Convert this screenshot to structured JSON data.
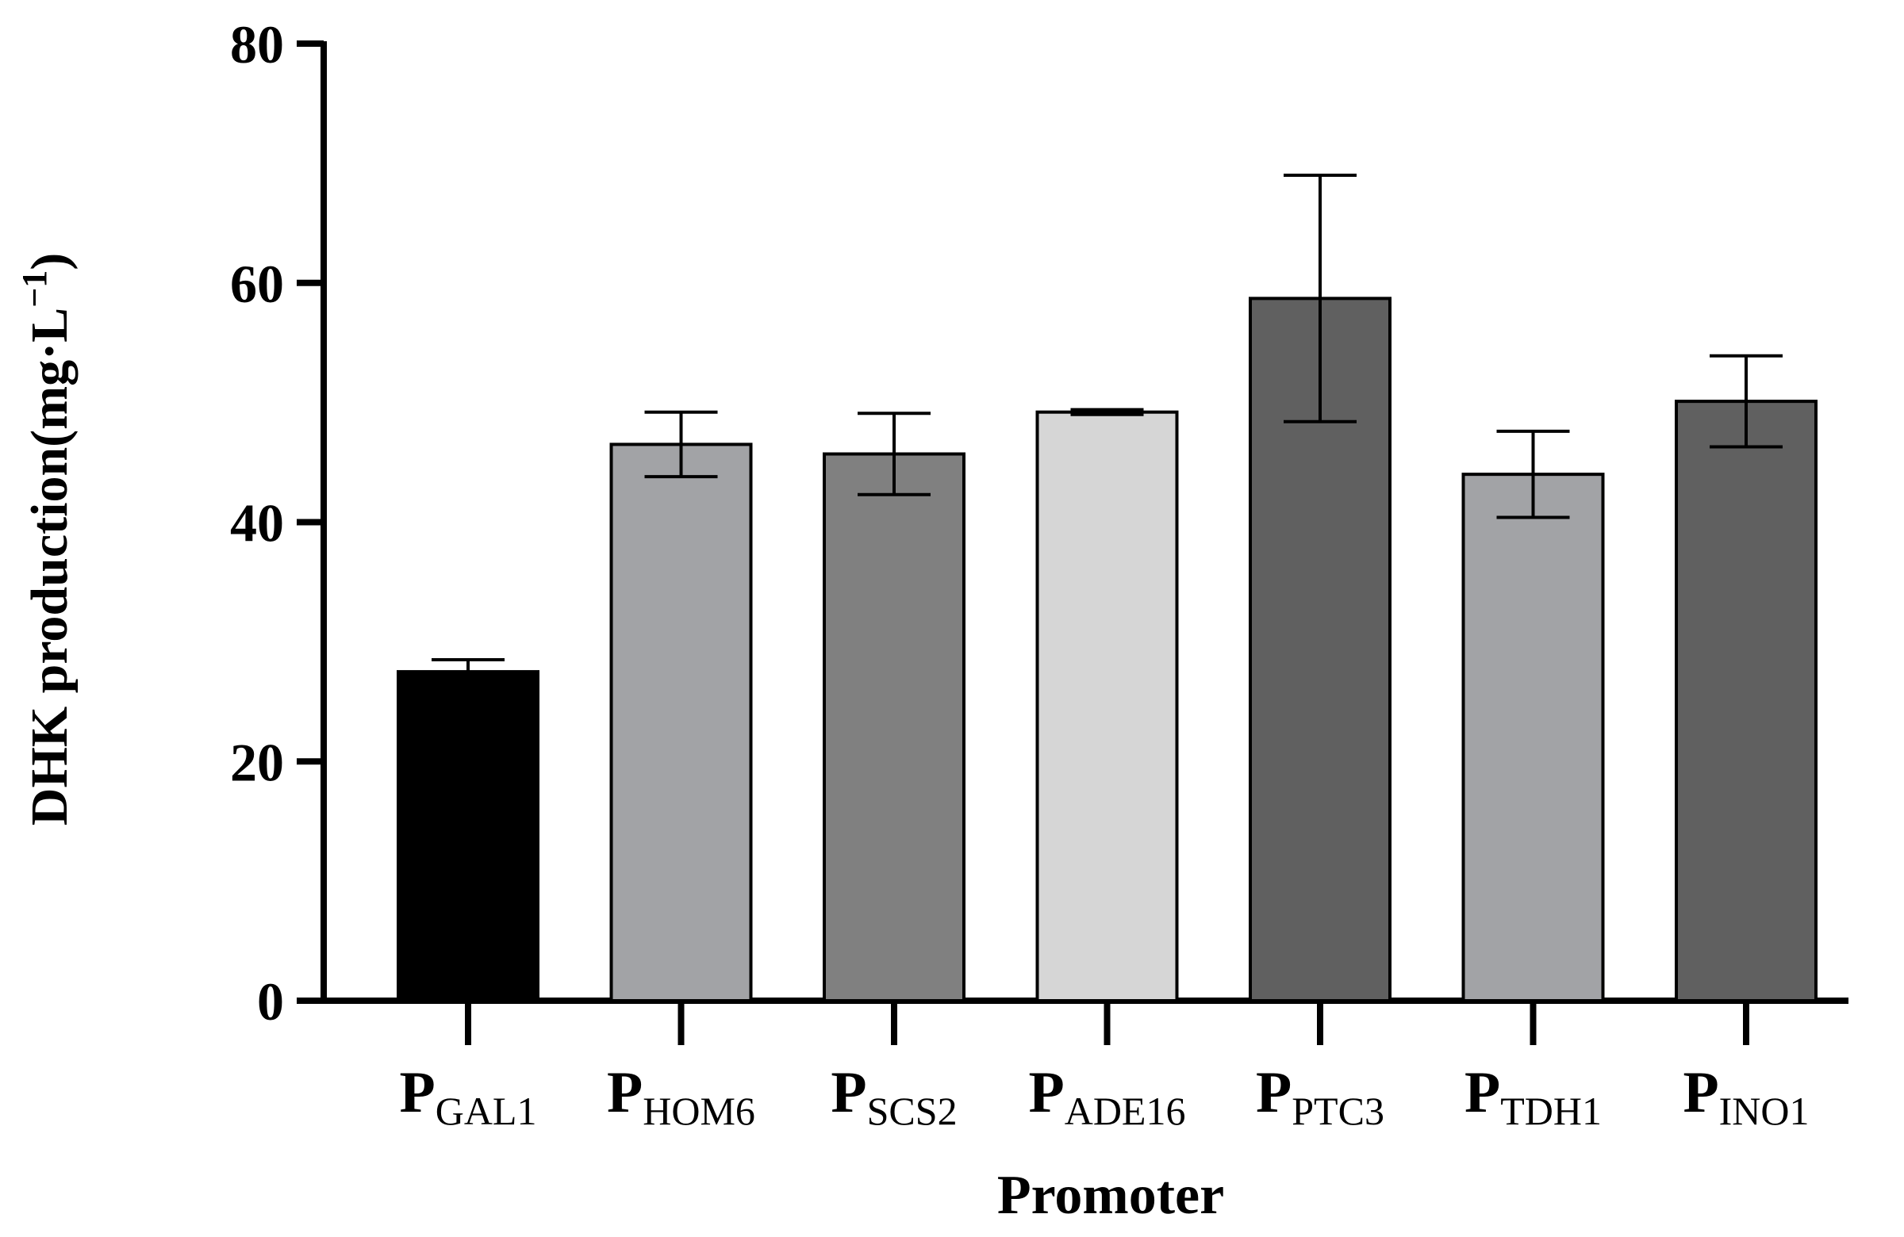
{
  "chart_data": {
    "type": "bar",
    "categories": [
      {
        "main": "P",
        "sub": "GAL1"
      },
      {
        "main": "P",
        "sub": "HOM6"
      },
      {
        "main": "P",
        "sub": "SCS2"
      },
      {
        "main": "P",
        "sub": "ADE16"
      },
      {
        "main": "P",
        "sub": "PTC3"
      },
      {
        "main": "P",
        "sub": "TDH1"
      },
      {
        "main": "P",
        "sub": "INO1"
      }
    ],
    "values": [
      27.5,
      46.5,
      45.7,
      49.2,
      58.7,
      44.0,
      50.1
    ],
    "errors": [
      1.0,
      2.7,
      3.4,
      0.2,
      10.3,
      3.6,
      3.8
    ],
    "colors": [
      "#000000",
      "#a2a3a6",
      "#808080",
      "#d6d6d6",
      "#606060",
      "#a2a3a6",
      "#606060"
    ],
    "xlabel": "Promoter",
    "ylabel": {
      "main": "DHK production(mg·L",
      "sup": "−1",
      "close": ")"
    },
    "ylim": [
      0,
      80
    ],
    "yticks": [
      "0",
      "20",
      "40",
      "60",
      "80"
    ],
    "grid": false
  }
}
